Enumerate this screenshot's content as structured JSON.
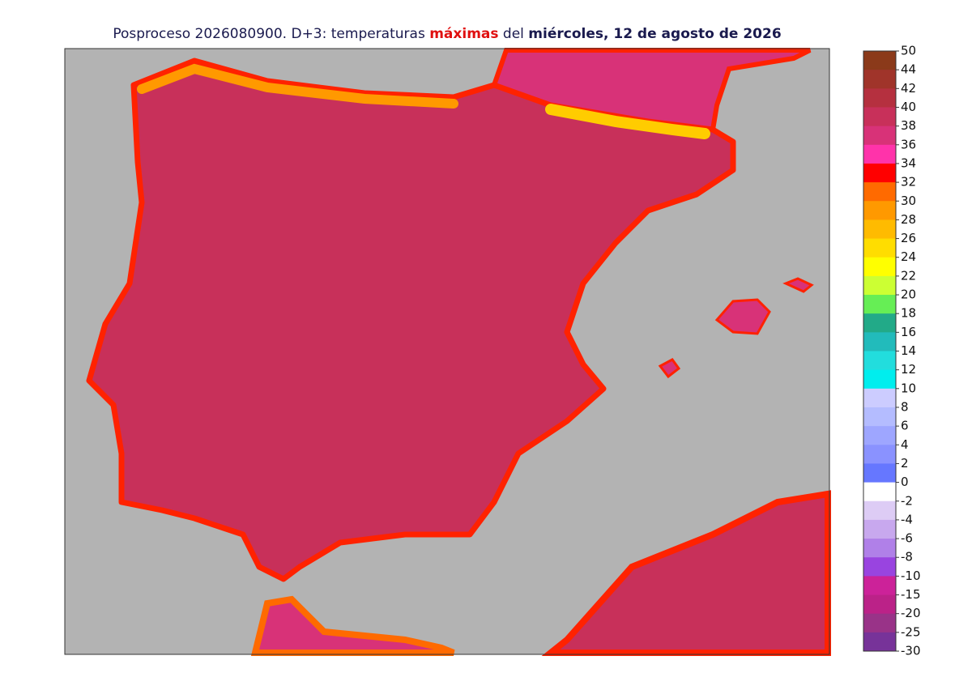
{
  "title": {
    "prefix": "Posproceso 2026080900. D+3: temperaturas ",
    "highlight": "máximas",
    "middle": " del ",
    "date": "miércoles, 12 de agosto de 2026"
  },
  "legend": {
    "ticks": [
      50,
      44,
      42,
      40,
      38,
      36,
      34,
      32,
      30,
      28,
      26,
      24,
      22,
      20,
      18,
      16,
      14,
      12,
      10,
      8,
      6,
      4,
      2,
      0,
      -2,
      -4,
      -6,
      -8,
      -10,
      -15,
      -20,
      -25,
      -30
    ],
    "colors": [
      "#8b3a1a",
      "#a0342a",
      "#b5303f",
      "#c8305a",
      "#d83278",
      "#ff33aa",
      "#ff0000",
      "#ff6a00",
      "#ff9900",
      "#ffbb00",
      "#ffdd00",
      "#ffff00",
      "#ccff33",
      "#66ee55",
      "#22aa88",
      "#22bbbb",
      "#22dddd",
      "#00eeee",
      "#ccccff",
      "#b4bcff",
      "#9ea6ff",
      "#8a92ff",
      "#6677ff",
      "#ffffff",
      "#ddccf5",
      "#c8a8ee",
      "#b080e8",
      "#9944e0",
      "#cc2299",
      "#bb2288",
      "#993388",
      "#773399"
    ]
  }
}
